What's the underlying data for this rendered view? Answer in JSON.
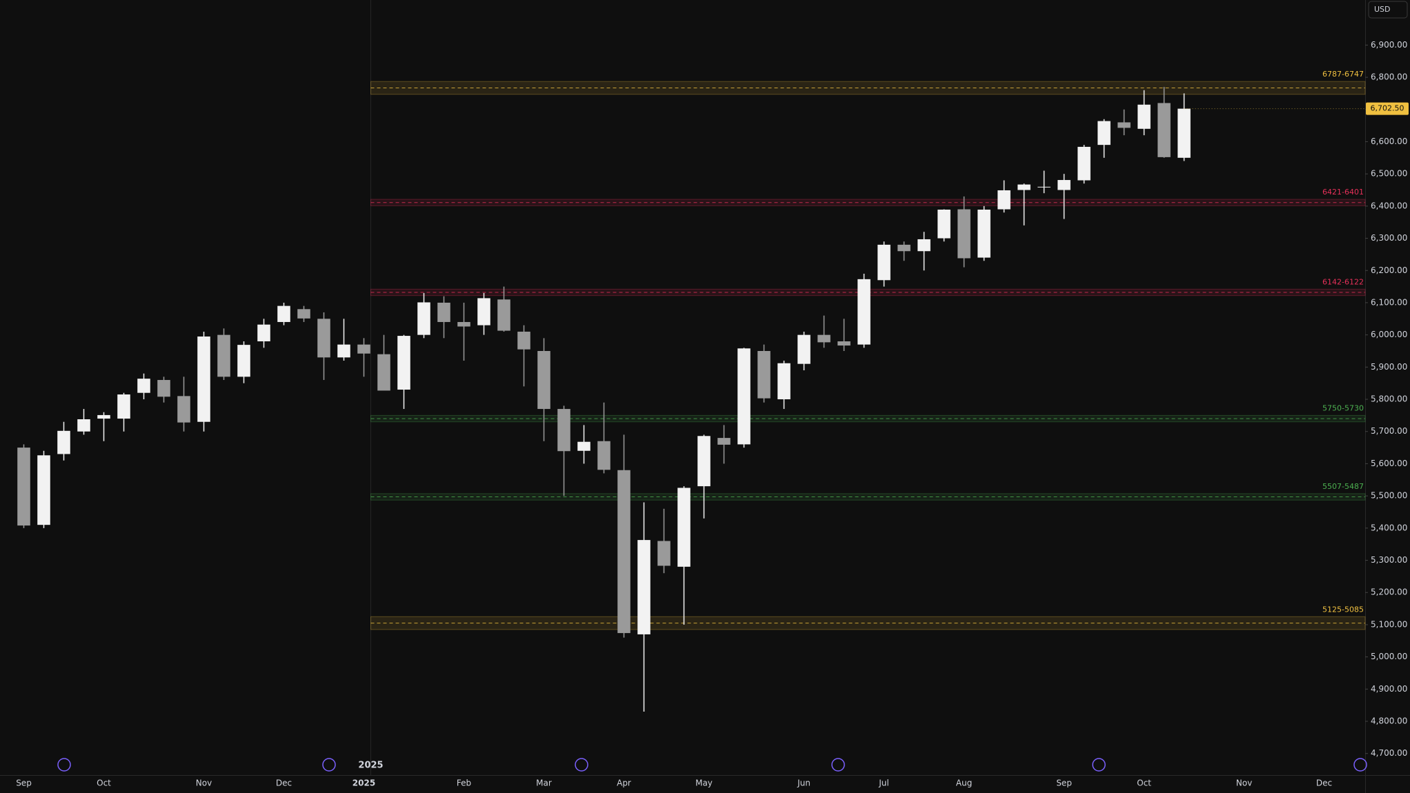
{
  "chart_data": {
    "type": "candlestick",
    "currency": "USD",
    "year_marker": "2025",
    "up_color": "#f2f2f2",
    "down_color": "#9a9a9a",
    "categories": [
      "Sep",
      null,
      null,
      null,
      "Oct",
      null,
      null,
      null,
      null,
      "Nov",
      null,
      null,
      null,
      "Dec",
      null,
      null,
      null,
      "2025",
      null,
      null,
      null,
      null,
      "Feb",
      null,
      null,
      null,
      "Mar",
      null,
      null,
      null,
      "Apr",
      null,
      null,
      null,
      "May",
      null,
      null,
      null,
      null,
      "Jun",
      null,
      null,
      null,
      "Jul",
      null,
      null,
      null,
      "Aug",
      null,
      null,
      null,
      null,
      "Sep",
      null,
      null,
      null,
      "Oct",
      null,
      null,
      null,
      null,
      "Nov",
      null,
      null,
      null,
      "Dec",
      null
    ],
    "open": [
      5650,
      5410,
      5630,
      5700,
      5740,
      5740,
      5820,
      5860,
      5810,
      5730,
      6000,
      5870,
      5980,
      6040,
      6080,
      6050,
      5930,
      5970,
      5940,
      5830,
      6000,
      6100,
      6040,
      6030,
      6110,
      6010,
      5950,
      5770,
      5640,
      5670,
      5580,
      5070,
      5360,
      5280,
      5530,
      5680,
      5660,
      5950,
      5800,
      5910,
      6000,
      5980,
      5970,
      6170,
      6280,
      6260,
      6300,
      6390,
      6240,
      6390,
      6450,
      6460,
      6450,
      6480,
      6590,
      6660,
      6640,
      6720,
      6550,
      null,
      null,
      null,
      null,
      null,
      null,
      null,
      null
    ],
    "high": [
      5660,
      5640,
      5730,
      5770,
      5760,
      5820,
      5880,
      5870,
      5870,
      6010,
      6020,
      5980,
      6050,
      6100,
      6090,
      6070,
      6050,
      5990,
      6000,
      6000,
      6130,
      6120,
      6100,
      6130,
      6150,
      6030,
      5990,
      5780,
      5720,
      5790,
      5690,
      5480,
      5460,
      5530,
      5690,
      5720,
      5960,
      5970,
      5920,
      6010,
      6060,
      6050,
      6190,
      6290,
      6290,
      6320,
      6390,
      6430,
      6400,
      6480,
      6470,
      6510,
      6500,
      6590,
      6670,
      6700,
      6760,
      6770,
      6750,
      null,
      null,
      null,
      null,
      null,
      null,
      null,
      null
    ],
    "low": [
      5400,
      5400,
      5610,
      5690,
      5670,
      5700,
      5800,
      5790,
      5700,
      5700,
      5860,
      5850,
      5960,
      6030,
      6040,
      5860,
      5920,
      5870,
      5830,
      5770,
      5990,
      5990,
      5920,
      6000,
      6010,
      5840,
      5670,
      5500,
      5600,
      5570,
      5060,
      4830,
      5260,
      5100,
      5430,
      5600,
      5650,
      5790,
      5770,
      5890,
      5960,
      5950,
      5960,
      6150,
      6230,
      6200,
      6290,
      6210,
      6230,
      6380,
      6340,
      6440,
      6360,
      6470,
      6550,
      6620,
      6620,
      6550,
      6540,
      null,
      null,
      null,
      null,
      null,
      null,
      null,
      null
    ],
    "close": [
      5408,
      5626,
      5702,
      5738,
      5751,
      5815,
      5864,
      5808,
      5728,
      5995,
      5870,
      5969,
      6032,
      6090,
      6051,
      5930,
      5970,
      5942,
      5827,
      5997,
      6101,
      6040,
      6026,
      6114,
      6013,
      5955,
      5770,
      5639,
      5668,
      5581,
      5074,
      5363,
      5283,
      5525,
      5686,
      5659,
      5958,
      5803,
      5912,
      6000,
      5977,
      5967,
      6173,
      6280,
      6260,
      6297,
      6389,
      6238,
      6389,
      6449,
      6467,
      6460,
      6481,
      6584,
      6664,
      6643,
      6715,
      6552,
      6702.5,
      null,
      null,
      null,
      null,
      null,
      null,
      null,
      null
    ],
    "last_price": {
      "value": 6702.5,
      "label": "6,702.50"
    },
    "ylim": [
      4633,
      7040
    ],
    "yticks": [
      {
        "value": 4700,
        "label": "4,700.00"
      },
      {
        "value": 4800,
        "label": "4,800.00"
      },
      {
        "value": 4900,
        "label": "4,900.00"
      },
      {
        "value": 5000,
        "label": "5,000.00"
      },
      {
        "value": 5100,
        "label": "5,100.00"
      },
      {
        "value": 5200,
        "label": "5,200.00"
      },
      {
        "value": 5300,
        "label": "5,300.00"
      },
      {
        "value": 5400,
        "label": "5,400.00"
      },
      {
        "value": 5500,
        "label": "5,500.00"
      },
      {
        "value": 5600,
        "label": "5,600.00"
      },
      {
        "value": 5700,
        "label": "5,700.00"
      },
      {
        "value": 5800,
        "label": "5,800.00"
      },
      {
        "value": 5900,
        "label": "5,900.00"
      },
      {
        "value": 6000,
        "label": "6,000.00"
      },
      {
        "value": 6100,
        "label": "6,100.00"
      },
      {
        "value": 6200,
        "label": "6,200.00"
      },
      {
        "value": 6300,
        "label": "6,300.00"
      },
      {
        "value": 6400,
        "label": "6,400.00"
      },
      {
        "value": 6500,
        "label": "6,500.00"
      },
      {
        "value": 6600,
        "label": "6,600.00"
      },
      {
        "value": 6700,
        "label": "6,700.00"
      },
      {
        "value": 6800,
        "label": "6,800.00"
      },
      {
        "value": 6900,
        "label": "6,900.00"
      }
    ],
    "zones": [
      {
        "label": "6787-6747",
        "high": 6787,
        "low": 6747,
        "color": "#f0c040"
      },
      {
        "label": "6421-6401",
        "high": 6421,
        "low": 6401,
        "color": "#e8305a"
      },
      {
        "label": "6142-6122",
        "high": 6142,
        "low": 6122,
        "color": "#e8305a"
      },
      {
        "label": "5750-5730",
        "high": 5750,
        "low": 5730,
        "color": "#4caf50"
      },
      {
        "label": "5507-5487",
        "high": 5507,
        "low": 5487,
        "color": "#4caf50"
      },
      {
        "label": "5125-5085",
        "high": 5125,
        "low": 5085,
        "color": "#f0c040"
      }
    ]
  }
}
